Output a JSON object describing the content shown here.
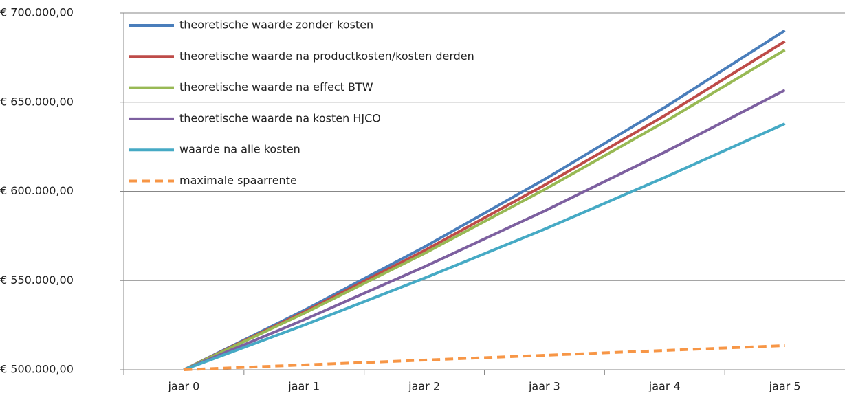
{
  "chart_data": {
    "type": "line",
    "categories": [
      "jaar 0",
      "jaar 1",
      "jaar 2",
      "jaar 3",
      "jaar 4",
      "jaar 5"
    ],
    "series": [
      {
        "name": "theoretische waarde zonder kosten",
        "color": "#4a7ebb",
        "dash": false,
        "values": [
          500000,
          533300,
          568800,
          606700,
          647100,
          690200
        ]
      },
      {
        "name": "theoretische waarde na productkosten/kosten derden",
        "color": "#be4b48",
        "dash": false,
        "values": [
          500000,
          532350,
          566800,
          603500,
          642500,
          684100
        ]
      },
      {
        "name": "theoretische waarde na effect BTW",
        "color": "#98b954",
        "dash": false,
        "values": [
          500000,
          531600,
          565200,
          601000,
          639000,
          679300
        ]
      },
      {
        "name": "theoretische waarde na kosten HJCO",
        "color": "#7d60a0",
        "dash": false,
        "values": [
          500000,
          528000,
          557700,
          589000,
          622000,
          656800
        ]
      },
      {
        "name": "waarde na alle kosten",
        "color": "#46aac5",
        "dash": false,
        "values": [
          500000,
          525000,
          551300,
          578800,
          607800,
          638000
        ]
      },
      {
        "name": "maximale spaarrente",
        "color": "#f79646",
        "dash": true,
        "values": [
          500000,
          502700,
          505400,
          508100,
          510800,
          513500
        ]
      }
    ],
    "ylim": [
      500000,
      700000
    ],
    "yticks": [
      {
        "value": 500000,
        "label": "€ 500.000,00"
      },
      {
        "value": 550000,
        "label": "€ 550.000,00"
      },
      {
        "value": 600000,
        "label": "€ 600.000,00"
      },
      {
        "value": 650000,
        "label": "€ 650.000,00"
      },
      {
        "value": 700000,
        "label": "€ 700.000,00"
      }
    ],
    "grid": true,
    "legend": "top-left"
  }
}
